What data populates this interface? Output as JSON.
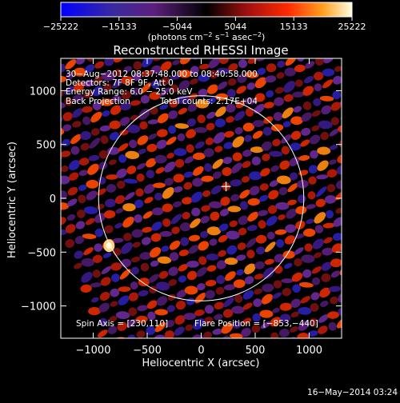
{
  "chart_data": {
    "type": "heatmap",
    "title": "Reconstructed RHESSI Image",
    "xlabel": "Heliocentric X (arcsec)",
    "ylabel": "Heliocentric Y (arcsec)",
    "xlim": [
      -1300,
      1300
    ],
    "ylim": [
      -1300,
      1300
    ],
    "xticks": [
      -1000,
      -500,
      0,
      500,
      1000
    ],
    "yticks": [
      -1000,
      -500,
      0,
      500,
      1000
    ],
    "xtick_labels": [
      "−1000",
      "−500",
      "0",
      "500",
      "1000"
    ],
    "ytick_labels": [
      "1000",
      "500",
      "0",
      "−500",
      "−1000"
    ],
    "colorbar": {
      "min": -25222,
      "max": 25222,
      "ticks": [
        -25222,
        -15133,
        -5044,
        5044,
        15133,
        25222
      ],
      "tick_labels": [
        "−25222",
        "−15133",
        "−5044",
        "5044",
        "15133",
        "25222"
      ],
      "unit_base": "(photons cm",
      "unit_exp1": "−2",
      "unit_mid": " s",
      "unit_exp2": "−1",
      "unit_mid2": " asec",
      "unit_exp3": "−2",
      "unit_end": ")"
    },
    "solar_limb_radius": 950,
    "crosshair": [
      230,
      110
    ],
    "grid": false
  },
  "annotations": {
    "time_range": "30−Aug−2012 08:37:48.000 to 08:40:58.000",
    "detectors": "Detectors: 7F 8F 9F, Att 0",
    "energy_range": "Energy Range: 6.0 − 25.0 keV",
    "algorithm": "Back Projection",
    "total_counts": "Total counts: 2.17E+04",
    "spin_axis": "Spin Axis = [230,110]",
    "flare_position": "Flare Position = [−853,−440]"
  },
  "footer_timestamp": "16−May−2014 03:24"
}
